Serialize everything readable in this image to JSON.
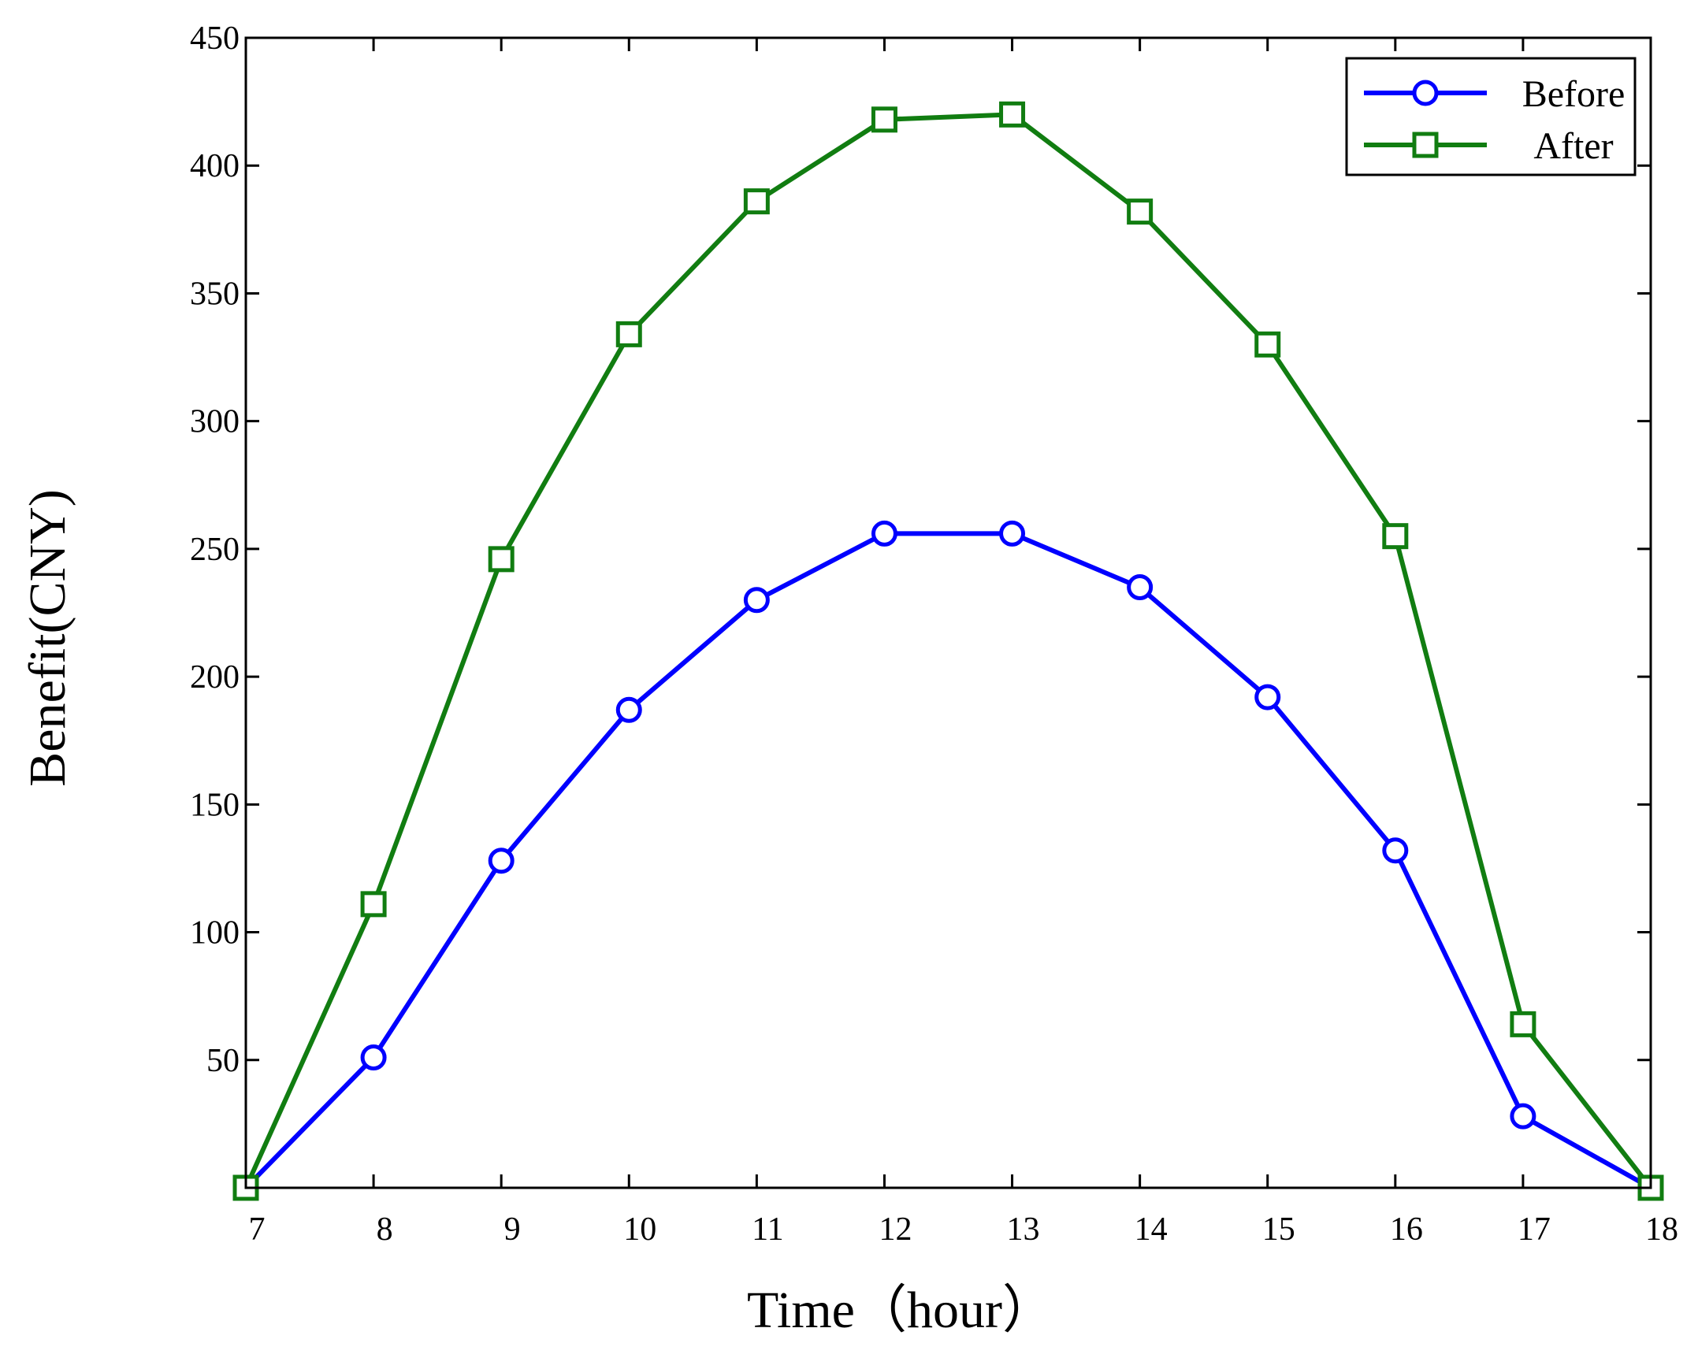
{
  "chart_data": {
    "type": "line",
    "title": "",
    "xlabel": "Time（hour）",
    "ylabel": "Benefit(CNY)",
    "x": [
      7,
      8,
      9,
      10,
      11,
      12,
      13,
      14,
      15,
      16,
      17,
      18
    ],
    "xlim": [
      7,
      18
    ],
    "ylim": [
      0,
      450
    ],
    "xticks": [
      7,
      8,
      9,
      10,
      11,
      12,
      13,
      14,
      15,
      16,
      17,
      18
    ],
    "yticks": [
      50,
      100,
      150,
      200,
      250,
      300,
      350,
      400,
      450
    ],
    "grid": false,
    "legend_position": "top-right",
    "series": [
      {
        "name": "Before",
        "color": "#0000ff",
        "marker": "circle",
        "values": [
          0,
          51,
          128,
          187,
          230,
          256,
          256,
          235,
          192,
          132,
          28,
          0
        ]
      },
      {
        "name": "After",
        "color": "#117d11",
        "marker": "square",
        "values": [
          0,
          111,
          246,
          334,
          386,
          418,
          420,
          382,
          330,
          255,
          64,
          0
        ]
      }
    ]
  }
}
